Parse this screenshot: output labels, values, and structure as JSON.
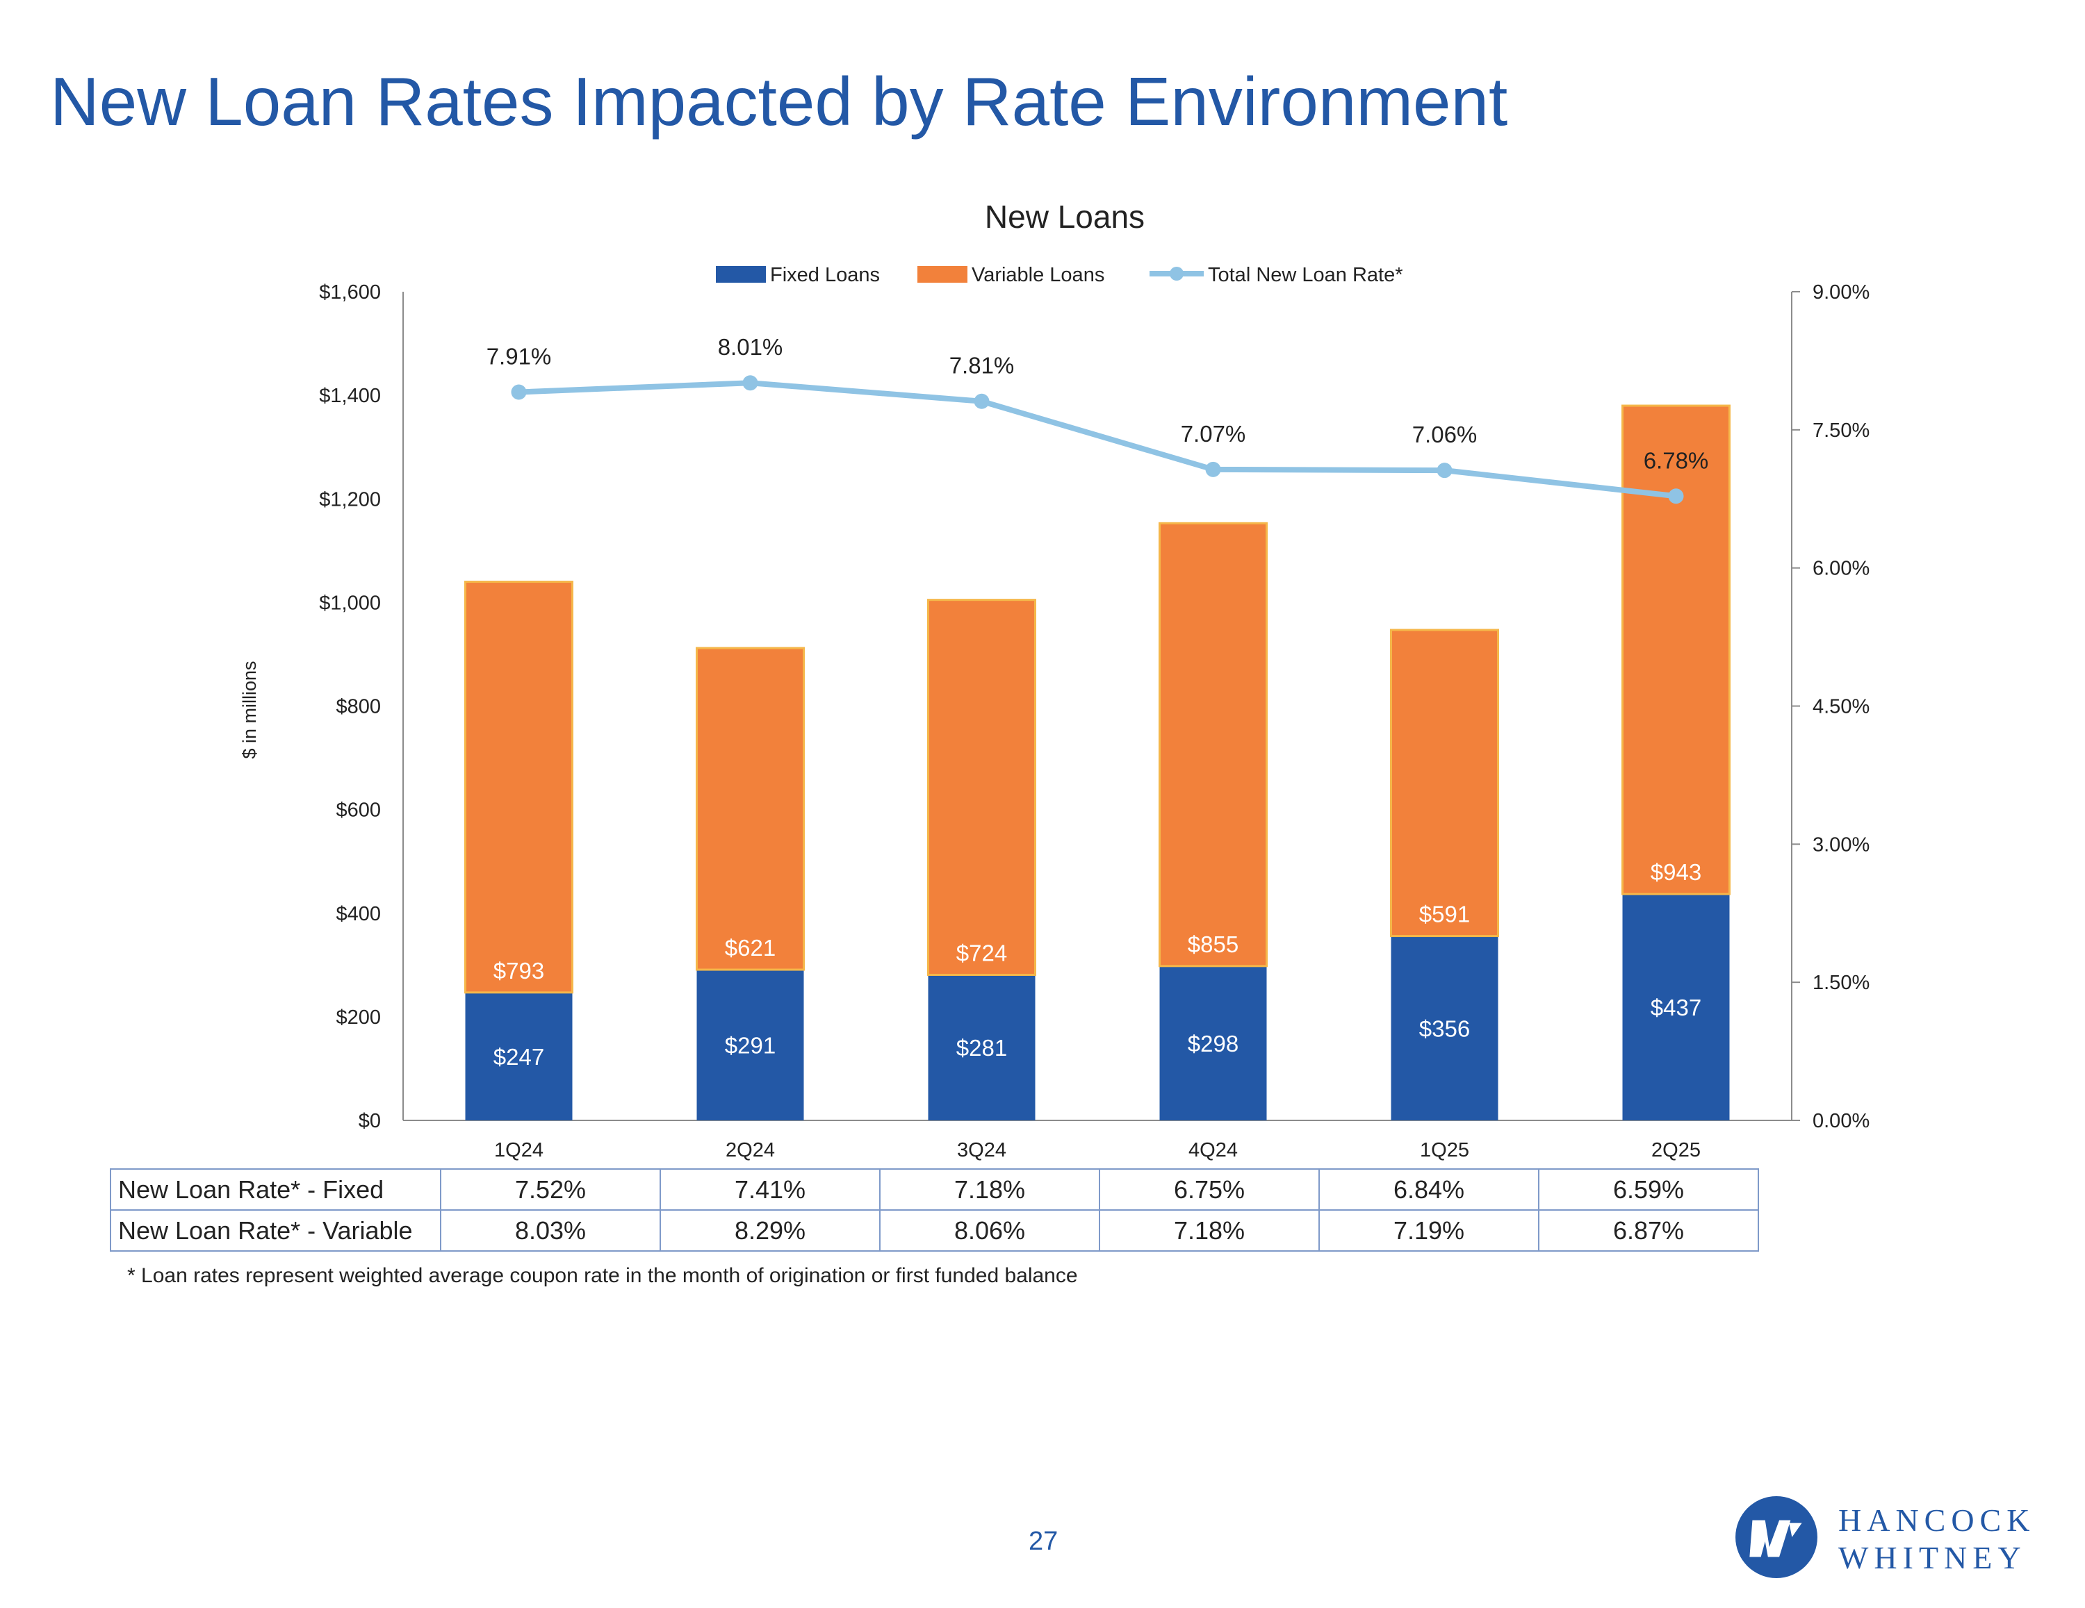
{
  "slide": {
    "title": "New Loan Rates Impacted by Rate Environment",
    "page_number": "27"
  },
  "colors": {
    "title": "#2358a6",
    "fixed": "#2358a6",
    "variable": "#f2813b",
    "rate_line": "#8fc3e4",
    "table_border": "#7f9ac9"
  },
  "chart_data": {
    "type": "bar",
    "stacked": true,
    "title": "New Loans",
    "categories": [
      "1Q24",
      "2Q24",
      "3Q24",
      "4Q24",
      "1Q25",
      "2Q25"
    ],
    "series": [
      {
        "name": "Fixed Loans",
        "values": [
          247,
          291,
          281,
          298,
          356,
          437
        ],
        "labels": [
          "$247",
          "$291",
          "$281",
          "$298",
          "$356",
          "$437"
        ]
      },
      {
        "name": "Variable Loans",
        "values": [
          793,
          621,
          724,
          855,
          591,
          943
        ],
        "labels": [
          "$793",
          "$621",
          "$724",
          "$855",
          "$591",
          "$943"
        ]
      }
    ],
    "line_series": {
      "name": "Total New Loan Rate*",
      "axis": "secondary",
      "values": [
        7.91,
        8.01,
        7.81,
        7.07,
        7.06,
        6.78
      ],
      "labels": [
        "7.91%",
        "8.01%",
        "7.81%",
        "7.07%",
        "7.06%",
        "6.78%"
      ]
    },
    "ylabel": "$ in millions",
    "ylim": [
      0,
      1600
    ],
    "yticks": [
      0,
      200,
      400,
      600,
      800,
      1000,
      1200,
      1400,
      1600
    ],
    "ytick_labels": [
      "$0",
      "$200",
      "$400",
      "$600",
      "$800",
      "$1,000",
      "$1,200",
      "$1,400",
      "$1,600"
    ],
    "y2lim": [
      0,
      9
    ],
    "y2ticks": [
      0,
      1.5,
      3,
      4.5,
      6,
      7.5,
      9
    ],
    "y2tick_labels": [
      "0.00%",
      "1.50%",
      "3.00%",
      "4.50%",
      "6.00%",
      "7.50%",
      "9.00%"
    ],
    "legend": [
      "Fixed Loans",
      "Variable Loans",
      "Total New Loan Rate*"
    ],
    "legend_position": "top-center",
    "grid": false
  },
  "rate_table": {
    "rows": [
      {
        "label": "New Loan Rate* - Fixed",
        "values": [
          "7.52%",
          "7.41%",
          "7.18%",
          "6.75%",
          "6.84%",
          "6.59%"
        ]
      },
      {
        "label": "New Loan Rate* - Variable",
        "values": [
          "8.03%",
          "8.29%",
          "8.06%",
          "7.18%",
          "7.19%",
          "6.87%"
        ]
      }
    ]
  },
  "footnote": "* Loan rates represent weighted average coupon rate in the month of origination or first funded balance",
  "logo": {
    "line1": "HANCOCK",
    "line2": "WHITNEY"
  }
}
